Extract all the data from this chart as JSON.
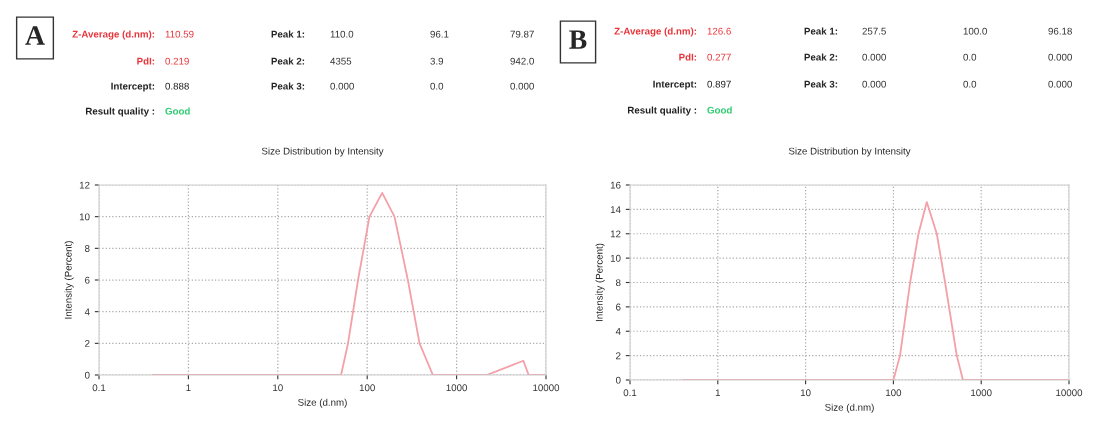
{
  "chart_data": [
    {
      "type": "line",
      "title": "Size Distribution by Intensity",
      "xlabel": "Size (d.nm)",
      "ylabel": "Intensity (Percent)",
      "log": "x",
      "grid": true,
      "marker": "none",
      "line_style": "solid",
      "xlim": [
        0.1,
        10000
      ],
      "xticks": [
        0.1,
        1,
        10,
        100,
        1000,
        10000
      ],
      "ylim": [
        0,
        12
      ],
      "yticks": [
        0,
        2,
        4,
        6,
        8,
        10,
        12
      ],
      "series": [
        {
          "color": "#f4a0a8",
          "x": [
            0.4,
            10,
            51,
            61,
            79,
            106,
            147,
            202,
            285,
            385,
            543,
            1000,
            2170,
            5580,
            6400,
            10000
          ],
          "values": [
            0,
            0,
            0,
            2,
            6,
            10,
            11.5,
            10,
            6,
            2,
            0,
            0,
            0,
            0.9,
            0,
            0
          ]
        }
      ],
      "annotations": [
        "A",
        "Z-Average (d.nm):",
        "110.59",
        "Peak 1:",
        "110.0",
        "96.1",
        "79.87",
        "PdI:",
        "0.219",
        "Peak 2:",
        "4355",
        "3.9",
        "942.0",
        "Intercept:",
        "0.888",
        "Peak 3:",
        "0.000",
        "0.0",
        "0.000",
        "Result quality :",
        "Good"
      ]
    },
    {
      "type": "line",
      "title": "Size Distribution by Intensity",
      "xlabel": "Size (d.nm)",
      "ylabel": "Intensity (Percent)",
      "log": "x",
      "grid": true,
      "marker": "none",
      "line_style": "solid",
      "xlim": [
        0.1,
        10000
      ],
      "xticks": [
        0.1,
        1,
        10,
        100,
        1000,
        10000
      ],
      "ylim": [
        0,
        16
      ],
      "yticks": [
        0,
        2,
        4,
        6,
        8,
        10,
        12,
        14,
        16
      ],
      "series": [
        {
          "color": "#f4a0a8",
          "x": [
            0.4,
            10,
            100,
            119,
            155,
            193,
            240,
            312,
            388,
            527,
            620,
            1000,
            10000
          ],
          "values": [
            0,
            0,
            0,
            2,
            8,
            12,
            14.6,
            12,
            8,
            2,
            0,
            0,
            0
          ]
        }
      ],
      "annotations": [
        "B",
        "Z-Average (d.nm):",
        "126.6",
        "Peak 1:",
        "257.5",
        "100.0",
        "96.18",
        "PdI:",
        "0.277",
        "Peak 2:",
        "0.000",
        "0.0",
        "0.000",
        "Intercept:",
        "0.897",
        "Peak 3:",
        "0.000",
        "0.0",
        "0.000",
        "Result quality :",
        "Good"
      ]
    }
  ]
}
